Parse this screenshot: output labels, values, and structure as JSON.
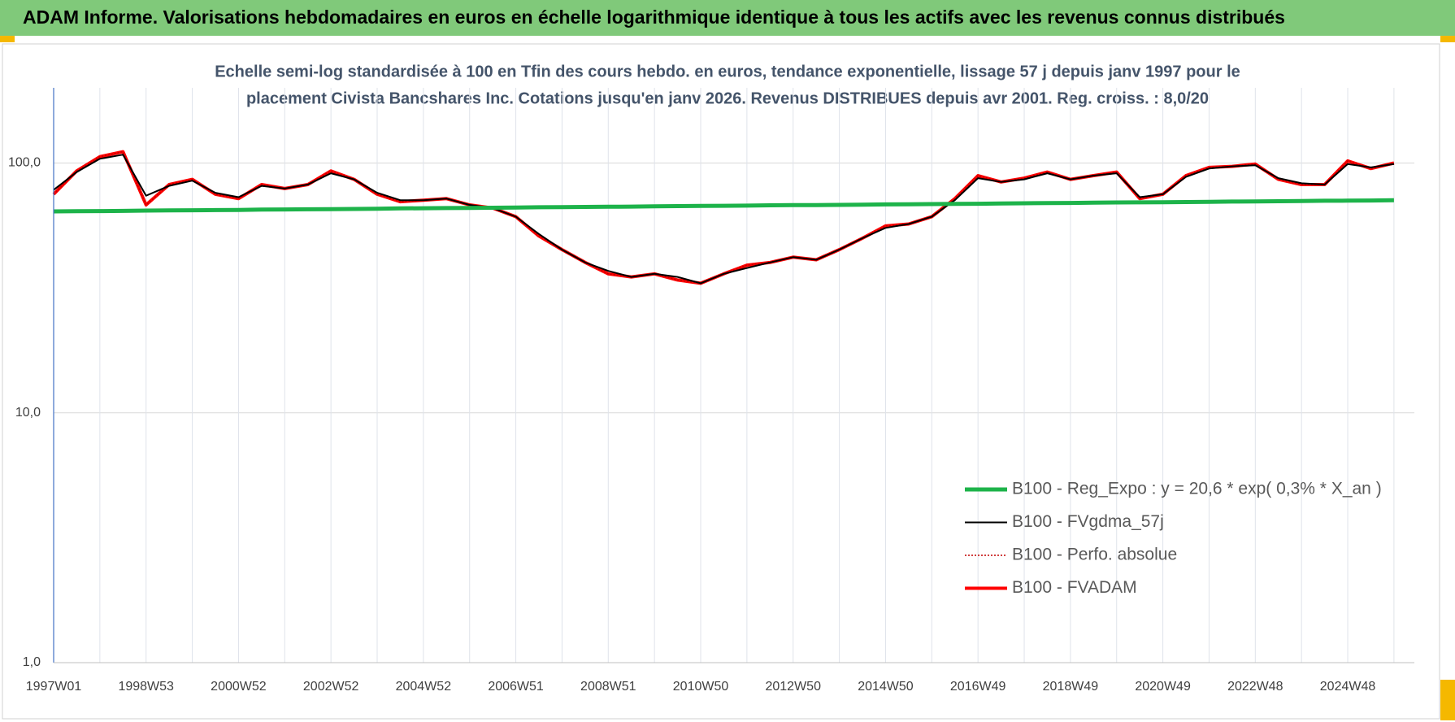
{
  "chart_data": {
    "type": "line",
    "title": "ADAM Informe. Valorisations hebdomadaires en euros en échelle logarithmique identique à tous les actifs avec les revenus connus distribués",
    "subtitle": [
      "Echelle semi-log standardisée à 100 en Tfin des cours hebdo. en euros, tendance exponentielle, lissage 57 j depuis janv 1997 pour le",
      "placement Civista Bancshares Inc. Cotations jusqu'en janv 2026. Revenus DISTRIBUES depuis avr 2001. Reg. croiss. : 8,0/20"
    ],
    "log_scale": true,
    "grid": true,
    "legend": "lower right",
    "categories": [
      "1997W01",
      null,
      null,
      null,
      "1998W53",
      null,
      null,
      null,
      "2000W52",
      null,
      null,
      null,
      "2002W52",
      null,
      null,
      null,
      "2004W52",
      null,
      null,
      null,
      "2006W51",
      null,
      null,
      null,
      "2008W51",
      null,
      null,
      null,
      "2010W50",
      null,
      null,
      null,
      "2012W50",
      null,
      null,
      null,
      "2014W50",
      null,
      null,
      null,
      "2016W49",
      null,
      null,
      null,
      "2018W49",
      null,
      null,
      null,
      "2020W49",
      null,
      null,
      null,
      "2022W48",
      null,
      null,
      null,
      "2024W48",
      null,
      null
    ],
    "ylim": [
      1,
      200
    ],
    "yticks": [
      {
        "value": 1,
        "label": "1,0"
      },
      {
        "value": 10,
        "label": "10,0"
      },
      {
        "value": 100,
        "label": "100,0"
      }
    ],
    "series": [
      {
        "name": "B100 - Reg_Expo : y = 20,6 * exp( 0,3% *  X_an )",
        "color": "#1db34a",
        "line_style": "solid",
        "line_width": 5,
        "values": [
          64.0,
          64.1,
          64.2,
          64.3,
          64.5,
          64.6,
          64.7,
          64.8,
          64.9,
          65.1,
          65.2,
          65.3,
          65.4,
          65.5,
          65.6,
          65.8,
          65.9,
          66.0,
          66.1,
          66.2,
          66.3,
          66.5,
          66.6,
          66.7,
          66.8,
          66.9,
          67.1,
          67.2,
          67.3,
          67.4,
          67.5,
          67.7,
          67.8,
          67.9,
          68.0,
          68.1,
          68.3,
          68.4,
          68.5,
          68.6,
          68.7,
          68.9,
          69.0,
          69.1,
          69.2,
          69.4,
          69.5,
          69.6,
          69.7,
          69.8,
          69.9,
          70.1,
          70.2,
          70.3,
          70.4,
          70.6,
          70.7,
          70.8,
          71.0
        ]
      },
      {
        "name": "B100 - FVgdma_57j",
        "color": "#000000",
        "line_style": "solid",
        "line_width": 2,
        "values": [
          78,
          92,
          104,
          108,
          74,
          81,
          85,
          76,
          73,
          81,
          79,
          82,
          91,
          86,
          76,
          71,
          71,
          72,
          68,
          66,
          61,
          52,
          45,
          40,
          37,
          35,
          36,
          35,
          33,
          36,
          38,
          40,
          42,
          41,
          45,
          50,
          55,
          57,
          61,
          71,
          87,
          84,
          86,
          91,
          86,
          89,
          91,
          73,
          75,
          88,
          95,
          97,
          98,
          87,
          83,
          82,
          99,
          96,
          99
        ]
      },
      {
        "name": "B100 - Perfo. absolue",
        "color": "#c00000",
        "line_style": "dotted",
        "line_width": 1.5,
        "values": [
          75,
          93,
          106,
          111,
          68,
          82,
          86,
          75,
          72,
          82,
          79,
          82,
          93,
          86,
          75,
          70,
          71,
          72,
          68,
          66,
          61,
          51,
          45,
          40,
          36,
          35,
          36,
          34,
          33,
          36,
          39,
          40,
          42,
          41,
          45,
          50,
          56,
          57,
          61,
          72,
          89,
          84,
          87,
          92,
          86,
          89,
          92,
          72,
          75,
          89,
          96,
          97,
          99,
          86,
          82,
          82,
          102,
          95,
          100
        ]
      },
      {
        "name": "B100 - FVADAM",
        "color": "#ff0000",
        "line_style": "solid",
        "line_width": 4,
        "values": [
          75,
          93,
          106,
          111,
          68,
          82,
          86,
          75,
          72,
          82,
          79,
          82,
          93,
          86,
          75,
          70,
          71,
          72,
          68,
          66,
          61,
          51,
          45,
          40,
          36,
          35,
          36,
          34,
          33,
          36,
          39,
          40,
          42,
          41,
          45,
          50,
          56,
          57,
          61,
          72,
          89,
          84,
          87,
          92,
          86,
          89,
          92,
          72,
          75,
          89,
          96,
          97,
          99,
          86,
          82,
          82,
          102,
          95,
          100
        ]
      }
    ]
  }
}
